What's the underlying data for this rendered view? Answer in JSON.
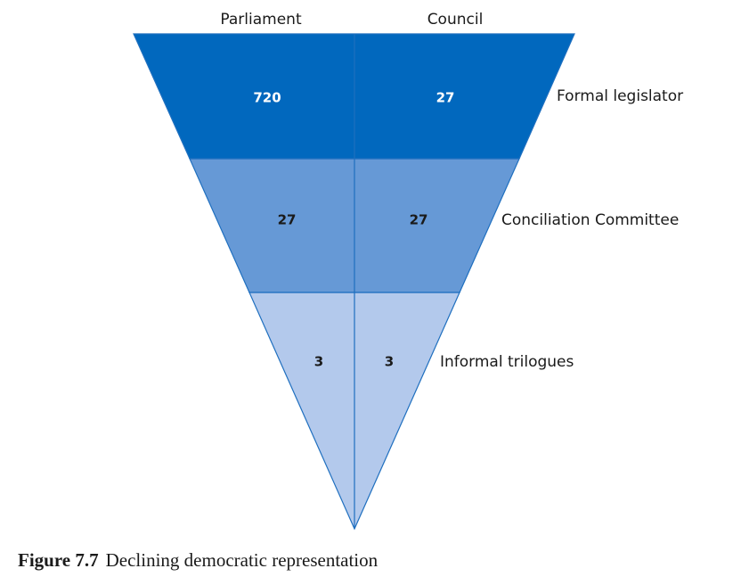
{
  "columns": [
    "Parliament",
    "Council"
  ],
  "levels": [
    {
      "label": "Formal legislator",
      "values": [
        720,
        27
      ]
    },
    {
      "label": "Conciliation Committee",
      "values": [
        27,
        27
      ]
    },
    {
      "label": "Informal trilogues",
      "values": [
        3,
        3
      ]
    }
  ],
  "caption": {
    "number": "Figure 7.7",
    "text": "Declining democratic representation"
  }
}
